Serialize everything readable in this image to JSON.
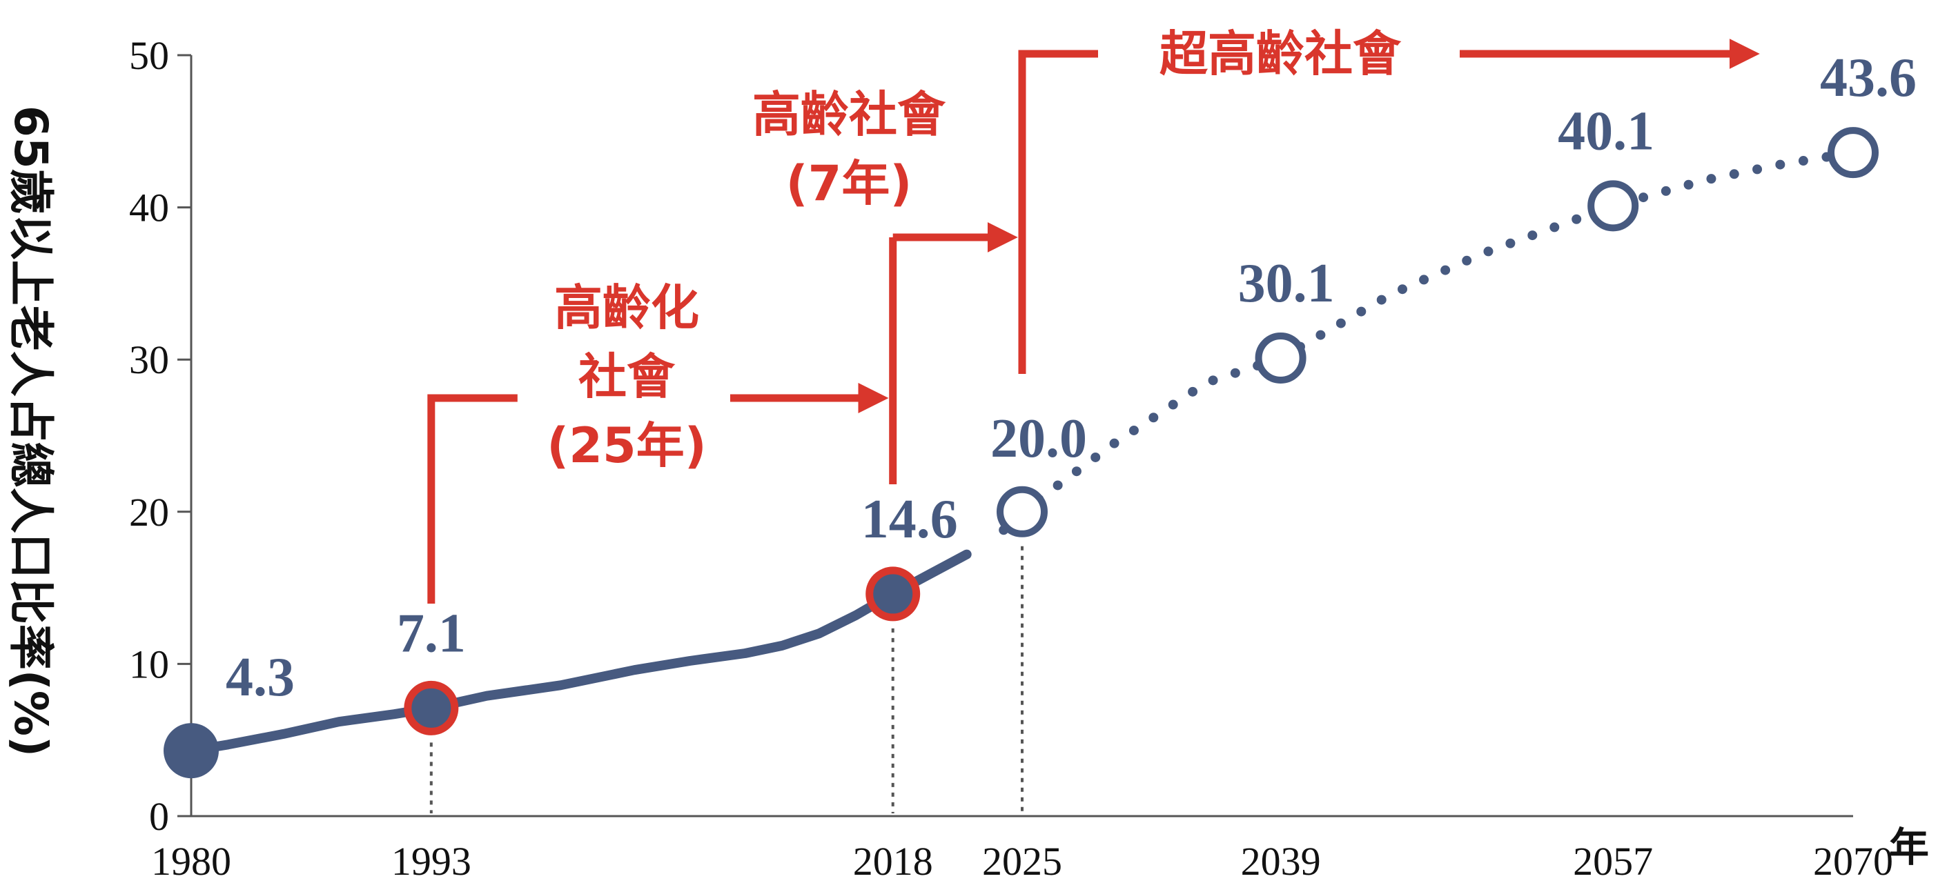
{
  "chart_data": {
    "type": "line",
    "title": "",
    "ylabel": "65歲以上老人占總人口比率(%)",
    "xlabel": "年",
    "ylim": [
      0,
      50
    ],
    "yticks": [
      "0",
      "10",
      "20",
      "30",
      "40",
      "50"
    ],
    "xlim": [
      1980,
      2070
    ],
    "xticks": [
      "1980",
      "1993",
      "2018",
      "2025",
      "2039",
      "2057",
      "2070"
    ],
    "grid": false,
    "legend": "none",
    "series": [
      {
        "style": "solid",
        "x": [
          1980,
          1982,
          1985,
          1988,
          1991,
          1993,
          1996,
          2000,
          2004,
          2007,
          2010,
          2012,
          2014,
          2016,
          2018,
          2020,
          2022
        ],
        "values": [
          4.3,
          4.7,
          5.4,
          6.2,
          6.7,
          7.1,
          7.9,
          8.6,
          9.6,
          10.2,
          10.7,
          11.2,
          12.0,
          13.2,
          14.6,
          15.9,
          17.2
        ]
      },
      {
        "style": "dotted",
        "x": [
          2024,
          2025,
          2030,
          2035,
          2039,
          2045,
          2050,
          2057,
          2062,
          2066,
          2070
        ],
        "values": [
          18.8,
          20.0,
          24.5,
          28.5,
          30.1,
          34.3,
          37.0,
          40.1,
          41.8,
          42.8,
          43.6
        ]
      }
    ],
    "points": [
      {
        "x": 1980,
        "y": 4.3,
        "label": "4.3",
        "marker": "filled"
      },
      {
        "x": 1993,
        "y": 7.1,
        "label": "7.1",
        "marker": "filled-red-ring"
      },
      {
        "x": 2018,
        "y": 14.6,
        "label": "14.6",
        "marker": "filled-red-ring"
      },
      {
        "x": 2025,
        "y": 20.0,
        "label": "20.0",
        "marker": "open"
      },
      {
        "x": 2039,
        "y": 30.1,
        "label": "30.1",
        "marker": "open"
      },
      {
        "x": 2057,
        "y": 40.1,
        "label": "40.1",
        "marker": "open"
      },
      {
        "x": 2070,
        "y": 43.6,
        "label": "43.6",
        "marker": "open"
      }
    ],
    "annotations": [
      {
        "text": [
          "高齡化",
          "社會",
          "(25年)"
        ],
        "from": 1993,
        "to": 2018
      },
      {
        "text": [
          "高齡社會",
          "(7年)"
        ],
        "from": 2018,
        "to": 2025
      },
      {
        "text": [
          "超高齡社會"
        ],
        "from": 2025,
        "to": 2070
      }
    ],
    "colors": {
      "line": "#475a80",
      "accent": "#d9362c",
      "axis": "#555555",
      "text": "#111111"
    }
  }
}
